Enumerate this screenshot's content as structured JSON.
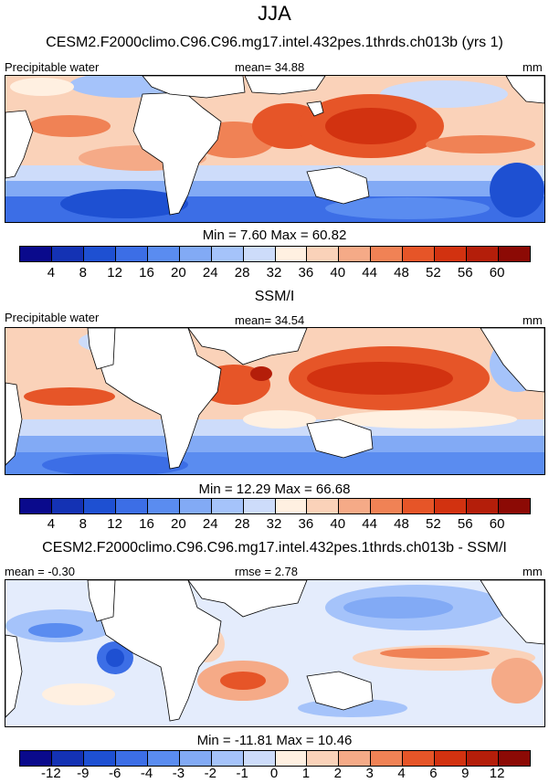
{
  "figure": {
    "title": "JJA"
  },
  "panels": [
    {
      "title": "CESM2.F2000climo.C96.C96.mg17.intel.432pes.1thrds.ch013b (yrs 1)",
      "left_label": "Precipitable water",
      "center_label": "mean=  34.88",
      "right_label": "mm",
      "minmax": "Min =   7.60 Max =  60.82"
    },
    {
      "title": "SSM/I",
      "left_label": "Precipitable water",
      "center_label": "mean=  34.54",
      "right_label": "mm",
      "minmax": "Min =  12.29 Max =  66.68"
    },
    {
      "title": "CESM2.F2000climo.C96.C96.mg17.intel.432pes.1thrds.ch013b - SSM/I",
      "left_label": "mean =  -0.30",
      "center_label": "rmse =  2.78",
      "right_label": "mm",
      "minmax": "Min = -11.81 Max =  10.46"
    }
  ],
  "colorbars": {
    "pw": {
      "ticks": [
        "4",
        "8",
        "12",
        "16",
        "20",
        "24",
        "28",
        "32",
        "36",
        "40",
        "44",
        "48",
        "52",
        "56",
        "60"
      ],
      "colors": [
        "#0a0a8c",
        "#1432b4",
        "#1e50d2",
        "#3c6ee6",
        "#5a8cf0",
        "#82aaf5",
        "#a5c3fa",
        "#cddcfa",
        "#fff0e1",
        "#fad2b9",
        "#f5aa87",
        "#f08255",
        "#e65528",
        "#d23210",
        "#b41e0a",
        "#8c0a05"
      ]
    },
    "diff": {
      "ticks": [
        "-12",
        "-9",
        "-6",
        "-4",
        "-3",
        "-2",
        "-1",
        "0",
        "1",
        "2",
        "3",
        "4",
        "6",
        "9",
        "12"
      ],
      "colors": [
        "#0a0a8c",
        "#1432b4",
        "#1e50d2",
        "#3c6ee6",
        "#5a8cf0",
        "#82aaf5",
        "#a5c3fa",
        "#cddcfa",
        "#fff0e1",
        "#fad2b9",
        "#f5aa87",
        "#f08255",
        "#e65528",
        "#d23210",
        "#b41e0a",
        "#8c0a05"
      ]
    }
  },
  "chart_data": [
    {
      "type": "heatmap",
      "title": "CESM2.F2000climo.C96.C96.mg17.intel.432pes.1thrds.ch013b (yrs 1)",
      "variable": "Precipitable water",
      "units": "mm",
      "season": "JJA",
      "mean": 34.88,
      "min": 7.6,
      "max": 60.82,
      "contour_levels": [
        4,
        8,
        12,
        16,
        20,
        24,
        28,
        32,
        36,
        40,
        44,
        48,
        52,
        56,
        60
      ]
    },
    {
      "type": "heatmap",
      "title": "SSM/I",
      "variable": "Precipitable water",
      "units": "mm",
      "season": "JJA",
      "mean": 34.54,
      "min": 12.29,
      "max": 66.68,
      "contour_levels": [
        4,
        8,
        12,
        16,
        20,
        24,
        28,
        32,
        36,
        40,
        44,
        48,
        52,
        56,
        60
      ]
    },
    {
      "type": "heatmap",
      "title": "CESM2.F2000climo.C96.C96.mg17.intel.432pes.1thrds.ch013b - SSM/I",
      "units": "mm",
      "season": "JJA",
      "mean": -0.3,
      "rmse": 2.78,
      "min": -11.81,
      "max": 10.46,
      "contour_levels": [
        -12,
        -9,
        -6,
        -4,
        -3,
        -2,
        -1,
        0,
        1,
        2,
        3,
        4,
        6,
        9,
        12
      ]
    }
  ]
}
